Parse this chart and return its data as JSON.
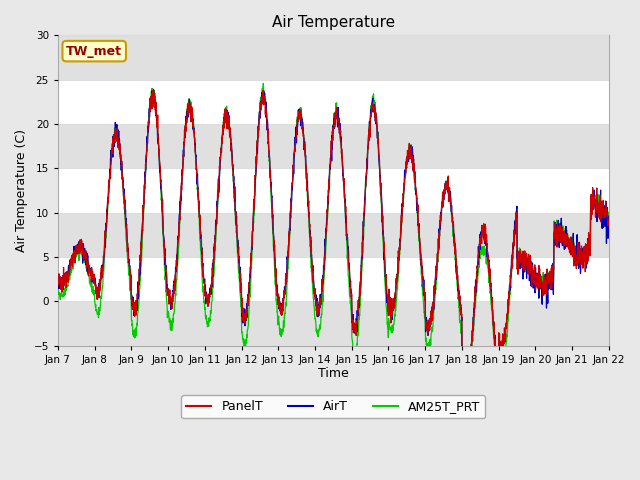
{
  "title": "Air Temperature",
  "ylabel": "Air Temperature (C)",
  "xlabel": "Time",
  "ylim": [
    -5,
    30
  ],
  "yticks": [
    -5,
    0,
    5,
    10,
    15,
    20,
    25,
    30
  ],
  "fig_facecolor": "#e8e8e8",
  "plot_bg_color": "#ffffff",
  "line_colors": {
    "PanelT": "#cc0000",
    "AirT": "#0000bb",
    "AM25T_PRT": "#00cc00"
  },
  "legend_labels": [
    "PanelT",
    "AirT",
    "AM25T_PRT"
  ],
  "station_label": "TW_met",
  "station_label_color": "#990000",
  "station_box_facecolor": "#ffffcc",
  "station_box_edgecolor": "#cc9900",
  "xtick_labels": [
    "Jan 7",
    "Jan 8",
    "Jan 9",
    "Jan 10",
    "Jan 11",
    "Jan 12",
    "Jan 13",
    "Jan 14",
    "Jan 15",
    "Jan 16",
    "Jan 17",
    "Jan 18",
    "Jan 19",
    "Jan 20",
    "Jan 21",
    "Jan 22"
  ],
  "grid_color": "#dddddd",
  "shaded_band_color": "#e0e0e0",
  "n_days": 15
}
